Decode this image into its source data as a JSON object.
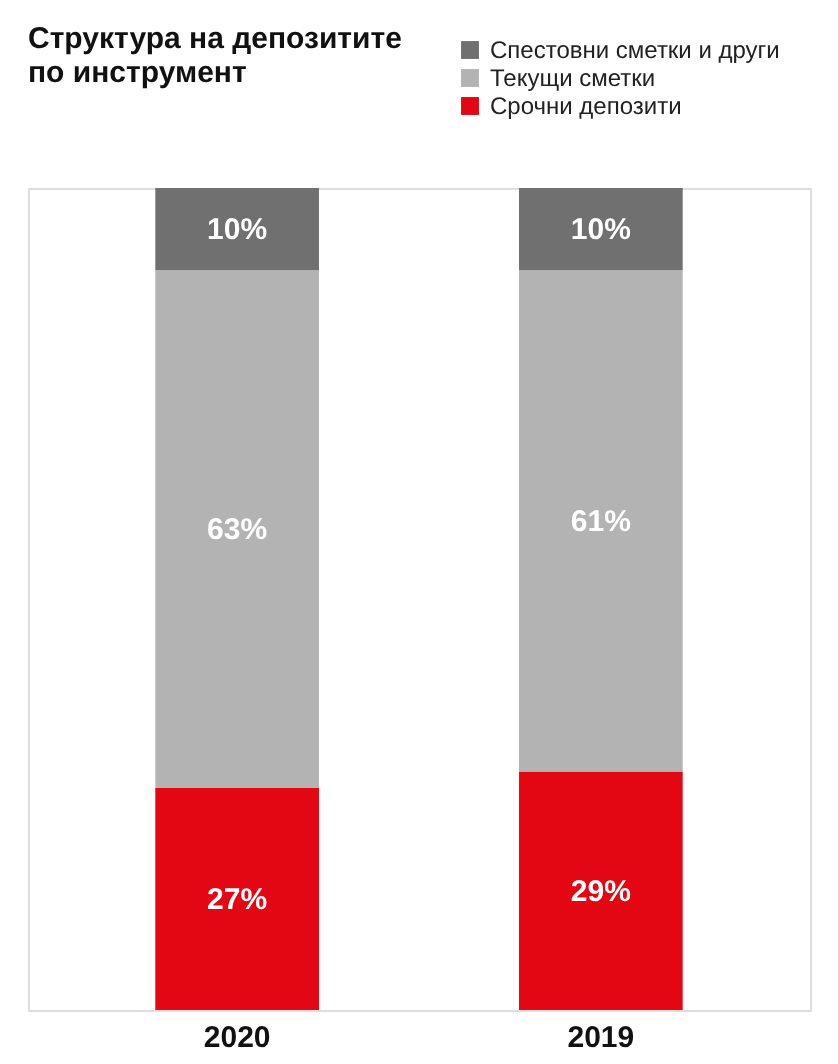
{
  "chart_data": {
    "type": "bar",
    "stacked": true,
    "title": "Структура на депозитите\nпо инструмент",
    "categories": [
      "2020",
      "2019"
    ],
    "series": [
      {
        "name": "Срочни депозити",
        "color": "#e30613",
        "values": [
          27,
          29
        ],
        "value_labels": [
          "27%",
          "29%"
        ]
      },
      {
        "name": "Текущи сметки",
        "color": "#b3b3b3",
        "values": [
          63,
          61
        ],
        "value_labels": [
          "63%",
          "61%"
        ]
      },
      {
        "name": "Спестовни сметки и други",
        "color": "#707070",
        "values": [
          10,
          10
        ],
        "value_labels": [
          "10%",
          "10%"
        ]
      }
    ],
    "legend": "top right",
    "grid": false
  }
}
